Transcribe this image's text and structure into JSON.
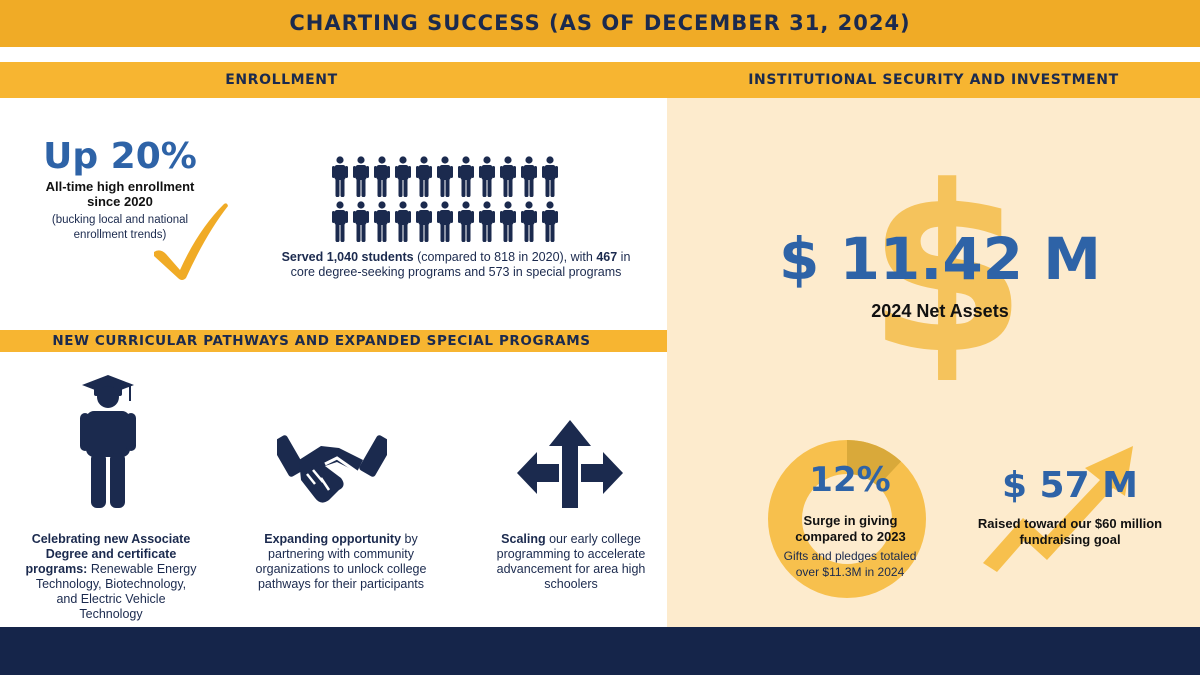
{
  "header": {
    "title": "CHARTING SUCCESS (AS OF DECEMBER 31, 2024)"
  },
  "enrollment": {
    "title": "ENROLLMENT",
    "headline": "Up 20%",
    "subhead_line1": "All-time high enrollment",
    "subhead_line2": "since 2020",
    "note_line1": "(bucking local and national",
    "note_line2": "enrollment trends)",
    "served_bold": "Served 1,040 students",
    "served_rest": " (compared to 818 in 2020), with ",
    "served_core_bold": "467",
    "served_tail": " in",
    "served_line2": "core degree-seeking programs and 573 in special programs",
    "icons": {
      "check": "checkmark-icon",
      "people": "person-icon"
    },
    "people_count": 22
  },
  "pathways": {
    "title": "NEW CURRICULAR PATHWAYS AND EXPANDED SPECIAL PROGRAMS",
    "items": [
      {
        "icon": "graduate-icon",
        "bold": "Celebrating new Associate Degree and certificate programs:",
        "rest": " Renewable Energy Technology, Biotechnology, and Electric Vehicle Technology"
      },
      {
        "icon": "handshake-icon",
        "bold": "Expanding opportunity",
        "rest": " by partnering with community organizations to unlock college pathways for their participants"
      },
      {
        "icon": "arrows-icon",
        "bold": "Scaling",
        "rest": " our early college programming to accelerate advancement for area high schoolers"
      }
    ]
  },
  "security": {
    "title": "INSTITUTIONAL SECURITY AND INVESTMENT",
    "net_assets_value": "$ 11.42 M",
    "net_assets_label": "2024 Net Assets",
    "giving_pct": "12%",
    "giving_label_line1": "Surge in giving",
    "giving_label_line2": "compared to 2023",
    "giving_note_line1": "Gifts and pledges totaled",
    "giving_note_line2": "over $11.3M in 2024",
    "giving_ring_fraction": 0.12,
    "raised_value": "$ 57 M",
    "raised_label_line1": "Raised toward our $60 million",
    "raised_label_line2": "fundraising goal",
    "icons": {
      "dollar": "dollar-sign-icon",
      "growth": "growth-arrow-icon"
    }
  },
  "colors": {
    "navy": "#1b2a4e",
    "gold": "#f0ab26",
    "blue": "#2e63a7",
    "cream": "#fdebcd",
    "footer": "#15254a"
  }
}
